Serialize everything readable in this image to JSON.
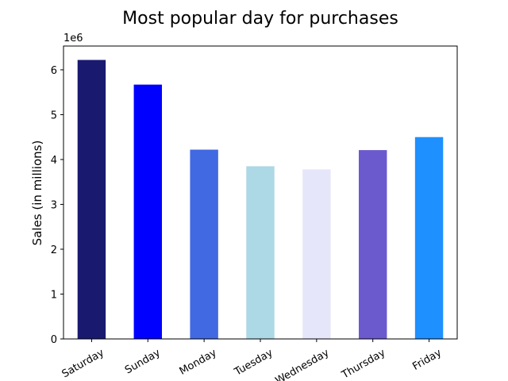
{
  "chart_data": {
    "type": "bar",
    "title": "Most popular day for purchases",
    "xlabel": "",
    "ylabel": "Sales (in millions)",
    "y_offset_text": "1e6",
    "categories": [
      "Saturday",
      "Sunday",
      "Monday",
      "Tuesday",
      "Wednesday",
      "Thursday",
      "Friday"
    ],
    "values": [
      6220000,
      5670000,
      4220000,
      3850000,
      3780000,
      4210000,
      4500000
    ],
    "colors": [
      "#191970",
      "#0000ff",
      "#4169e1",
      "#add8e6",
      "#e6e6fa",
      "#6a5acd",
      "#1e90ff"
    ],
    "ylim": [
      0,
      6530000
    ],
    "yticks": [
      0,
      1,
      2,
      3,
      4,
      5,
      6
    ],
    "grid": false,
    "legend": null
  }
}
